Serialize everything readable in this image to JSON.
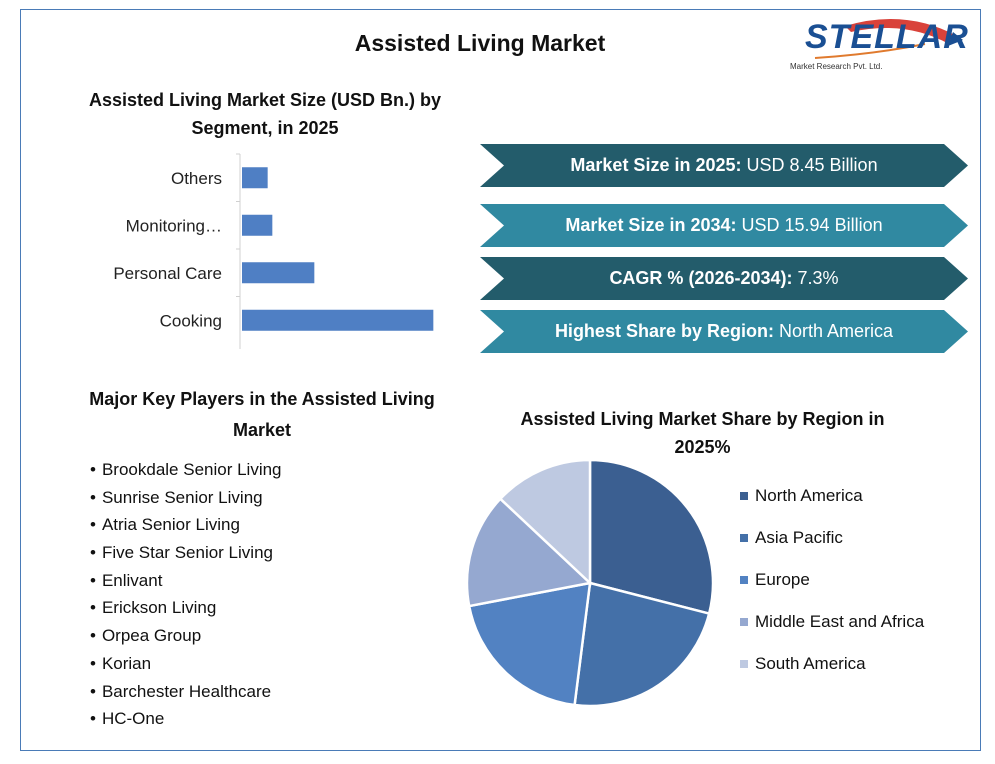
{
  "title": "Assisted Living Market",
  "logo": {
    "word": "STELLAR",
    "subtitle": "Market Research Pvt. Ltd."
  },
  "bar_chart_title": "Assisted Living Market Size (USD Bn.) by Segment, in 2025",
  "banners": [
    {
      "label": "Market Size in 2025:",
      "value": "USD 8.45 Billion"
    },
    {
      "label": "Market Size in 2034:",
      "value": "USD 15.94 Billion"
    },
    {
      "label": "CAGR % (2026-2034):",
      "value": "7.3%"
    },
    {
      "label": "Highest Share by Region:",
      "value": "North America"
    }
  ],
  "players_title": "Major Key Players in the Assisted Living Market",
  "players": [
    "Brookdale Senior Living",
    "Sunrise Senior Living",
    "Atria Senior Living",
    "Five Star Senior Living",
    "Enlivant",
    "Erickson Living",
    "Orpea Group",
    "Korian",
    "Barchester Healthcare",
    "HC-One"
  ],
  "pie_title": "Assisted Living Market Share by Region in 2025%",
  "chart_data": [
    {
      "type": "bar",
      "orientation": "horizontal",
      "title": "Assisted Living Market Size (USD Bn.) by Segment, in 2025",
      "categories": [
        "Others",
        "Monitoring…",
        "Personal Care",
        "Cooking"
      ],
      "values": [
        0.55,
        0.65,
        1.55,
        4.1
      ],
      "xlim": [
        0,
        4.5
      ],
      "color": "#4f7fc4",
      "grid": false
    },
    {
      "type": "pie",
      "title": "Assisted Living Market Share by Region in 2025%",
      "categories": [
        "North America",
        "Asia Pacific",
        "Europe",
        "Middle East and Africa",
        "South America"
      ],
      "values": [
        29,
        23,
        20,
        15,
        13
      ],
      "colors": [
        "#3b5f91",
        "#4470a8",
        "#5282c2",
        "#95a8d0",
        "#bec9e1"
      ],
      "legend": "right"
    }
  ]
}
